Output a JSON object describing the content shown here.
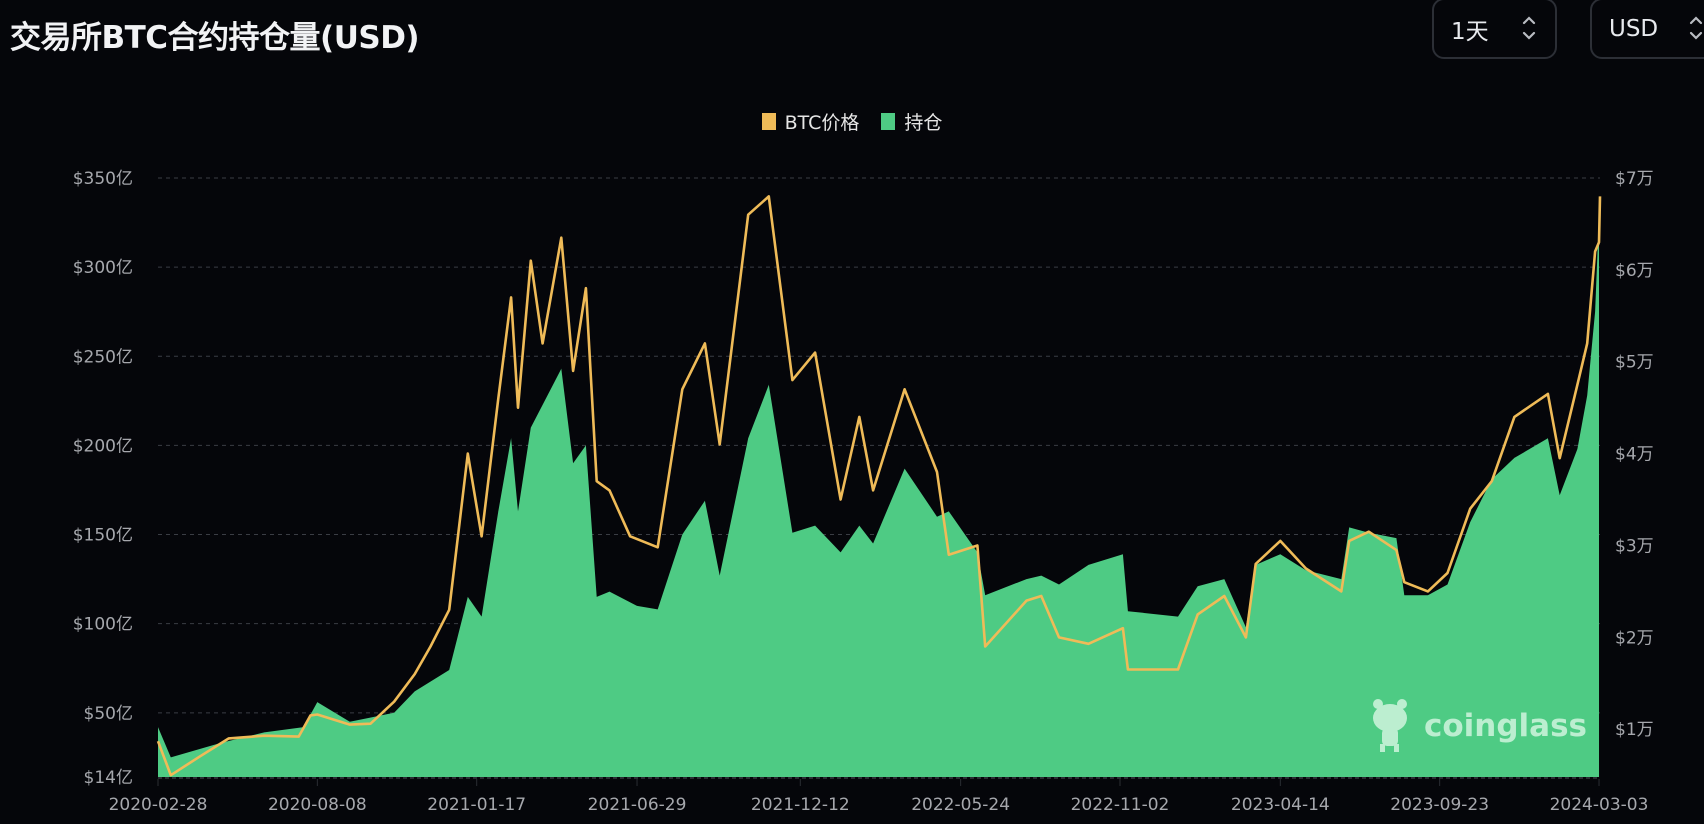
{
  "header": {
    "title": "交易所BTC合约持仓量(USD)",
    "interval_select": {
      "value": "1天",
      "icon": "chevron-up-down-icon"
    },
    "currency_select": {
      "value": "USD",
      "icon": "chevron-up-down-icon"
    }
  },
  "watermark": {
    "text": "coinglass"
  },
  "colors": {
    "background": "#05060a",
    "open_interest": "#4ecb84",
    "btc_price": "#efbb58",
    "grid": "#3a3d44",
    "axis_text": "#a6a8ad"
  },
  "chart_data": {
    "type": "area",
    "title": "交易所BTC合约持仓量(USD)",
    "legend": {
      "placement": "top-center",
      "entries": [
        "BTC价格",
        "持仓"
      ]
    },
    "grid": true,
    "x_tick_labels": [
      "2020-02-28",
      "2020-08-08",
      "2021-01-17",
      "2021-06-29",
      "2021-12-12",
      "2022-05-24",
      "2022-11-02",
      "2023-04-14",
      "2023-09-23",
      "2024-03-03"
    ],
    "x_range": [
      "2020-02-28",
      "2024-03-04"
    ],
    "left_axis": {
      "ylim": [
        14,
        350
      ],
      "ticks": [
        14,
        50,
        100,
        150,
        200,
        250,
        300,
        350
      ],
      "tick_labels": [
        "$14亿",
        "$50亿",
        "$100亿",
        "$150亿",
        "$200亿",
        "$250亿",
        "$300亿",
        "$350亿"
      ]
    },
    "right_axis": {
      "ylim": [
        4800,
        70000
      ],
      "ticks": [
        10000,
        20000,
        30000,
        40000,
        50000,
        60000,
        70000
      ],
      "tick_labels": [
        "$1万",
        "$2万",
        "$3万",
        "$4万",
        "$5万",
        "$6万",
        "$7万"
      ]
    },
    "series": [
      {
        "name": "持仓",
        "type": "area",
        "axis": "left",
        "unit": "亿 USD",
        "points": [
          [
            "2020-02-28",
            42
          ],
          [
            "2020-03-12",
            25
          ],
          [
            "2020-05-01",
            33
          ],
          [
            "2020-06-15",
            39
          ],
          [
            "2020-07-25",
            42
          ],
          [
            "2020-08-08",
            56
          ],
          [
            "2020-09-10",
            45
          ],
          [
            "2020-10-25",
            50
          ],
          [
            "2020-11-15",
            62
          ],
          [
            "2020-12-20",
            74
          ],
          [
            "2021-01-08",
            115
          ],
          [
            "2021-01-22",
            104
          ],
          [
            "2021-02-08",
            163
          ],
          [
            "2021-02-21",
            204
          ],
          [
            "2021-02-28",
            163
          ],
          [
            "2021-03-13",
            210
          ],
          [
            "2021-04-13",
            243
          ],
          [
            "2021-04-25",
            190
          ],
          [
            "2021-05-08",
            200
          ],
          [
            "2021-05-19",
            115
          ],
          [
            "2021-06-01",
            118
          ],
          [
            "2021-06-29",
            110
          ],
          [
            "2021-07-20",
            108
          ],
          [
            "2021-08-14",
            150
          ],
          [
            "2021-09-06",
            169
          ],
          [
            "2021-09-21",
            127
          ],
          [
            "2021-10-20",
            204
          ],
          [
            "2021-11-10",
            234
          ],
          [
            "2021-12-04",
            151
          ],
          [
            "2021-12-27",
            155
          ],
          [
            "2022-01-22",
            140
          ],
          [
            "2022-02-10",
            155
          ],
          [
            "2022-02-24",
            145
          ],
          [
            "2022-03-28",
            187
          ],
          [
            "2022-04-30",
            160
          ],
          [
            "2022-05-12",
            163
          ],
          [
            "2022-06-10",
            140
          ],
          [
            "2022-06-18",
            116
          ],
          [
            "2022-07-30",
            125
          ],
          [
            "2022-08-14",
            127
          ],
          [
            "2022-09-01",
            122
          ],
          [
            "2022-10-01",
            133
          ],
          [
            "2022-11-05",
            139
          ],
          [
            "2022-11-10",
            107
          ],
          [
            "2022-12-31",
            104
          ],
          [
            "2023-01-20",
            121
          ],
          [
            "2023-02-16",
            125
          ],
          [
            "2023-03-10",
            98
          ],
          [
            "2023-03-20",
            133
          ],
          [
            "2023-04-14",
            139
          ],
          [
            "2023-05-10",
            130
          ],
          [
            "2023-06-15",
            125
          ],
          [
            "2023-06-23",
            154
          ],
          [
            "2023-07-13",
            151
          ],
          [
            "2023-08-10",
            148
          ],
          [
            "2023-08-18",
            116
          ],
          [
            "2023-09-11",
            116
          ],
          [
            "2023-10-01",
            122
          ],
          [
            "2023-10-24",
            157
          ],
          [
            "2023-11-15",
            181
          ],
          [
            "2023-12-08",
            193
          ],
          [
            "2024-01-11",
            204
          ],
          [
            "2024-01-23",
            172
          ],
          [
            "2024-02-10",
            198
          ],
          [
            "2024-02-20",
            228
          ],
          [
            "2024-02-28",
            275
          ],
          [
            "2024-03-03",
            329
          ]
        ]
      },
      {
        "name": "BTC价格",
        "type": "line",
        "axis": "right",
        "unit": "USD",
        "points": [
          [
            "2020-02-28",
            8700
          ],
          [
            "2020-03-12",
            5000
          ],
          [
            "2020-04-10",
            7000
          ],
          [
            "2020-05-10",
            9000
          ],
          [
            "2020-06-15",
            9300
          ],
          [
            "2020-07-20",
            9200
          ],
          [
            "2020-08-01",
            11500
          ],
          [
            "2020-08-08",
            11600
          ],
          [
            "2020-09-10",
            10500
          ],
          [
            "2020-10-01",
            10600
          ],
          [
            "2020-10-25",
            13000
          ],
          [
            "2020-11-15",
            16000
          ],
          [
            "2020-12-01",
            19000
          ],
          [
            "2020-12-20",
            23000
          ],
          [
            "2021-01-08",
            40000
          ],
          [
            "2021-01-22",
            31000
          ],
          [
            "2021-02-08",
            46000
          ],
          [
            "2021-02-21",
            57000
          ],
          [
            "2021-02-28",
            45000
          ],
          [
            "2021-03-13",
            61000
          ],
          [
            "2021-03-25",
            52000
          ],
          [
            "2021-04-13",
            63500
          ],
          [
            "2021-04-25",
            49000
          ],
          [
            "2021-05-08",
            58000
          ],
          [
            "2021-05-19",
            37000
          ],
          [
            "2021-06-01",
            36000
          ],
          [
            "2021-06-22",
            31000
          ],
          [
            "2021-07-20",
            29800
          ],
          [
            "2021-08-14",
            47000
          ],
          [
            "2021-09-06",
            52000
          ],
          [
            "2021-09-21",
            41000
          ],
          [
            "2021-10-20",
            66000
          ],
          [
            "2021-11-10",
            68000
          ],
          [
            "2021-12-04",
            48000
          ],
          [
            "2021-12-27",
            51000
          ],
          [
            "2022-01-22",
            35000
          ],
          [
            "2022-02-10",
            44000
          ],
          [
            "2022-02-24",
            36000
          ],
          [
            "2022-03-28",
            47000
          ],
          [
            "2022-04-30",
            38000
          ],
          [
            "2022-05-12",
            29000
          ],
          [
            "2022-06-10",
            30000
          ],
          [
            "2022-06-18",
            19000
          ],
          [
            "2022-07-30",
            24000
          ],
          [
            "2022-08-14",
            24500
          ],
          [
            "2022-09-01",
            20000
          ],
          [
            "2022-10-01",
            19300
          ],
          [
            "2022-11-05",
            21000
          ],
          [
            "2022-11-10",
            16500
          ],
          [
            "2022-12-31",
            16500
          ],
          [
            "2023-01-20",
            22500
          ],
          [
            "2023-02-16",
            24500
          ],
          [
            "2023-03-10",
            20000
          ],
          [
            "2023-03-20",
            28000
          ],
          [
            "2023-04-14",
            30500
          ],
          [
            "2023-05-10",
            27500
          ],
          [
            "2023-06-15",
            25000
          ],
          [
            "2023-06-23",
            30500
          ],
          [
            "2023-07-13",
            31500
          ],
          [
            "2023-08-10",
            29500
          ],
          [
            "2023-08-18",
            26000
          ],
          [
            "2023-09-11",
            25000
          ],
          [
            "2023-10-01",
            27000
          ],
          [
            "2023-10-24",
            34000
          ],
          [
            "2023-11-15",
            37000
          ],
          [
            "2023-12-08",
            44000
          ],
          [
            "2024-01-11",
            46500
          ],
          [
            "2024-01-23",
            39500
          ],
          [
            "2024-02-10",
            47500
          ],
          [
            "2024-02-20",
            52000
          ],
          [
            "2024-02-28",
            62000
          ],
          [
            "2024-03-03",
            63000
          ],
          [
            "2024-03-04",
            68000
          ]
        ]
      }
    ]
  }
}
